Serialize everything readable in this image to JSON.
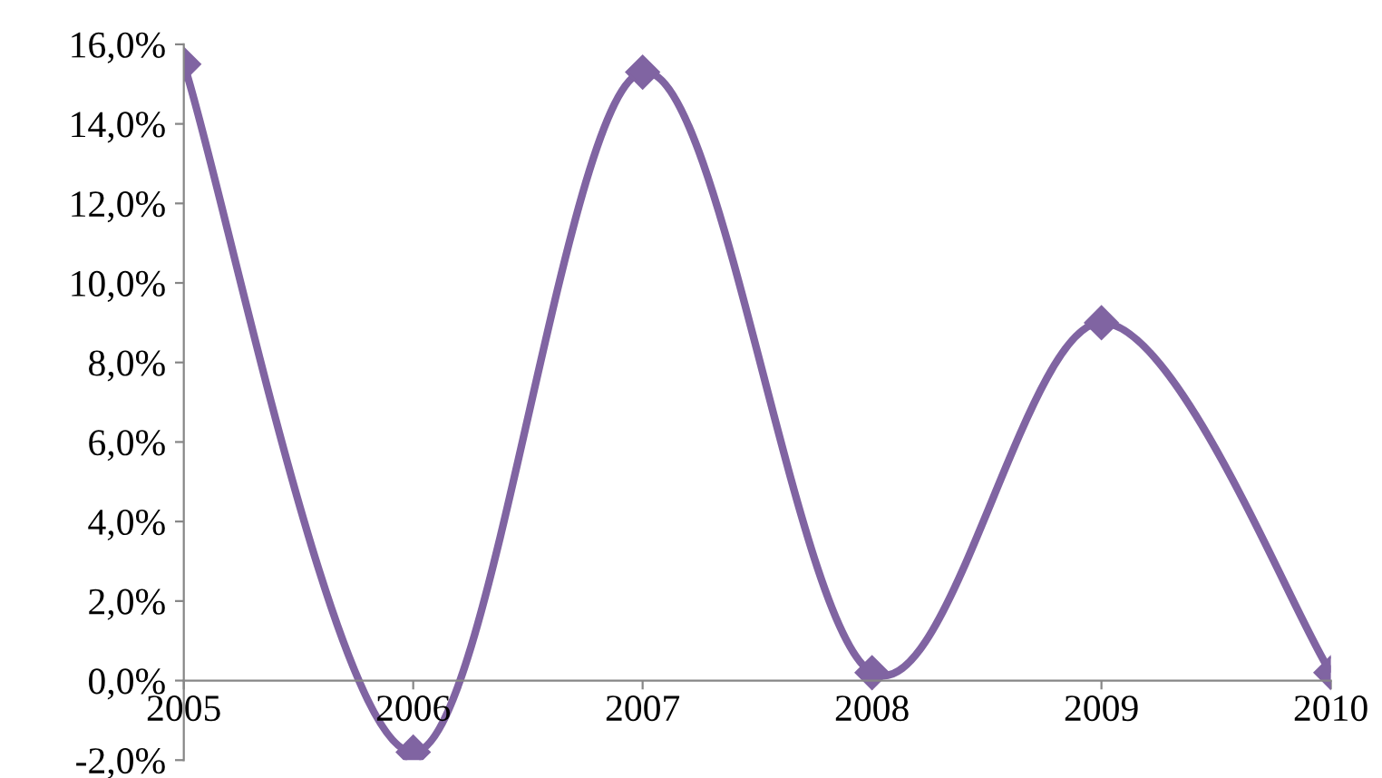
{
  "chart_data": {
    "type": "line",
    "categories": [
      "2005",
      "2006",
      "2007",
      "2008",
      "2009",
      "2010"
    ],
    "series": [
      {
        "color": "#8064a2",
        "values": [
          15.5,
          -1.8,
          15.3,
          0.2,
          9.0,
          0.2
        ]
      }
    ],
    "ylim": [
      -2,
      16
    ],
    "yticks": [
      {
        "value": -2,
        "label": "-2,0%"
      },
      {
        "value": 0,
        "label": "0,0%"
      },
      {
        "value": 2,
        "label": "2,0%"
      },
      {
        "value": 4,
        "label": "4,0%"
      },
      {
        "value": 6,
        "label": "6,0%"
      },
      {
        "value": 8,
        "label": "8,0%"
      },
      {
        "value": 10,
        "label": "10,0%"
      },
      {
        "value": 12,
        "label": "12,0%"
      },
      {
        "value": 14,
        "label": "14,0%"
      },
      {
        "value": 16,
        "label": "16,0%"
      }
    ],
    "grid": false,
    "legend": false,
    "marker": "diamond",
    "line_style": "solid"
  }
}
